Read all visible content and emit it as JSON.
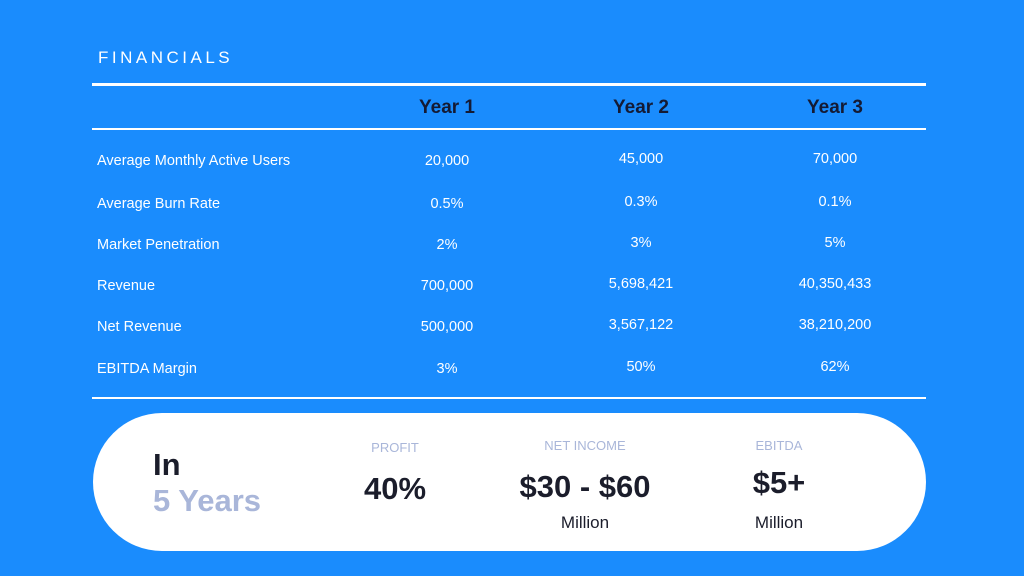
{
  "title": "FINANCIALS",
  "table": {
    "headers": [
      "Year 1",
      "Year 2",
      "Year 3"
    ],
    "rows": [
      {
        "label": "Average Monthly Active Users",
        "values": [
          "20,000",
          "45,000",
          "70,000"
        ]
      },
      {
        "label": "Average Burn Rate",
        "values": [
          "0.5%",
          "0.3%",
          "0.1%"
        ]
      },
      {
        "label": "Market Penetration",
        "values": [
          "2%",
          "3%",
          "5%"
        ]
      },
      {
        "label": "Revenue",
        "values": [
          "700,000",
          "5,698,421",
          "40,350,433"
        ]
      },
      {
        "label": "Net Revenue",
        "values": [
          "500,000",
          "3,567,122",
          "38,210,200"
        ]
      },
      {
        "label": "EBITDA Margin",
        "values": [
          "3%",
          "50%",
          "62%"
        ]
      }
    ]
  },
  "summary": {
    "in": "In",
    "years": "5 Years",
    "profit": {
      "label": "PROFIT",
      "value": "40%"
    },
    "net_income": {
      "label": "NET INCOME",
      "value": "$30 - $60",
      "unit": "Million"
    },
    "ebitda": {
      "label": "EBITDA",
      "value": "$5+",
      "unit": "Million"
    }
  }
}
